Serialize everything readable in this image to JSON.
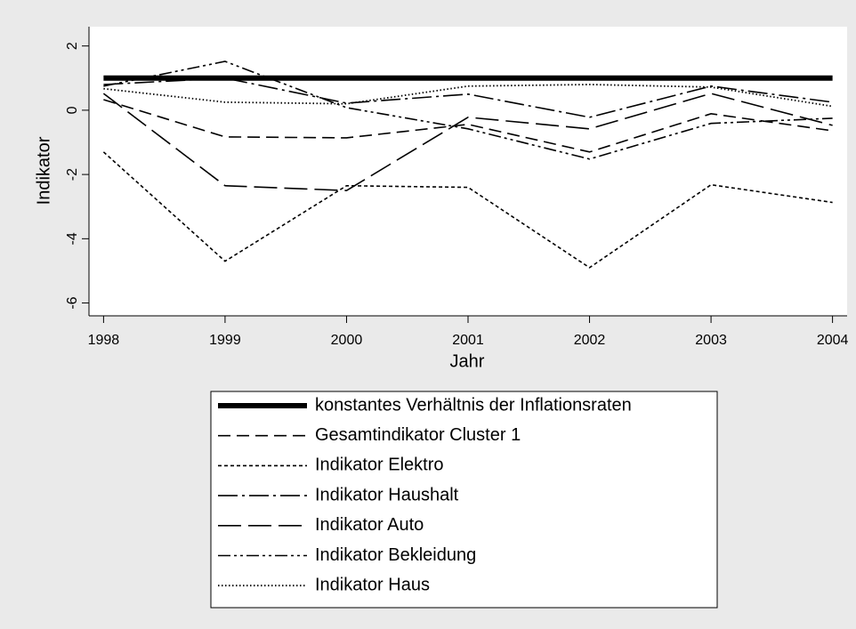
{
  "chart_data": {
    "type": "line",
    "x_label": "Jahr",
    "y_label": "Indikator",
    "x": [
      1998,
      1999,
      2000,
      2001,
      2002,
      2003,
      2004
    ],
    "xlim": [
      1997.88,
      2004.12
    ],
    "xticks": [
      1998,
      1999,
      2000,
      2001,
      2002,
      2003,
      2004
    ],
    "ylim": [
      -6.4,
      2.6
    ],
    "yticks": [
      -6,
      -4,
      -2,
      0,
      2
    ],
    "series": [
      {
        "name": "konstantes Verhältnis der Inflationsraten",
        "color": "#000000",
        "values": [
          1,
          1,
          1,
          1,
          1,
          1,
          1
        ]
      },
      {
        "name": "Gesamtindikator Cluster 1",
        "color": "#000000",
        "values": [
          0.33,
          -0.83,
          -0.86,
          -0.44,
          -1.3,
          -0.11,
          -0.64
        ]
      },
      {
        "name": "Indikator Elektro",
        "color": "#000000",
        "values": [
          -1.3,
          -4.7,
          -2.35,
          -2.4,
          -4.9,
          -2.32,
          -2.87
        ]
      },
      {
        "name": "Indikator Haushalt",
        "color": "#000000",
        "values": [
          0.8,
          1.0,
          0.22,
          0.5,
          -0.22,
          0.75,
          0.25
        ]
      },
      {
        "name": "Indikator Auto",
        "color": "#000000",
        "values": [
          0.52,
          -2.35,
          -2.5,
          -0.22,
          -0.58,
          0.52,
          -0.47
        ]
      },
      {
        "name": "Indikator Bekleidung",
        "color": "#000000",
        "values": [
          0.75,
          1.52,
          0.08,
          -0.58,
          -1.52,
          -0.41,
          -0.25
        ]
      },
      {
        "name": "Indikator Haus",
        "color": "#000000",
        "values": [
          0.67,
          0.25,
          0.2,
          0.75,
          0.8,
          0.72,
          0.12
        ]
      }
    ]
  }
}
